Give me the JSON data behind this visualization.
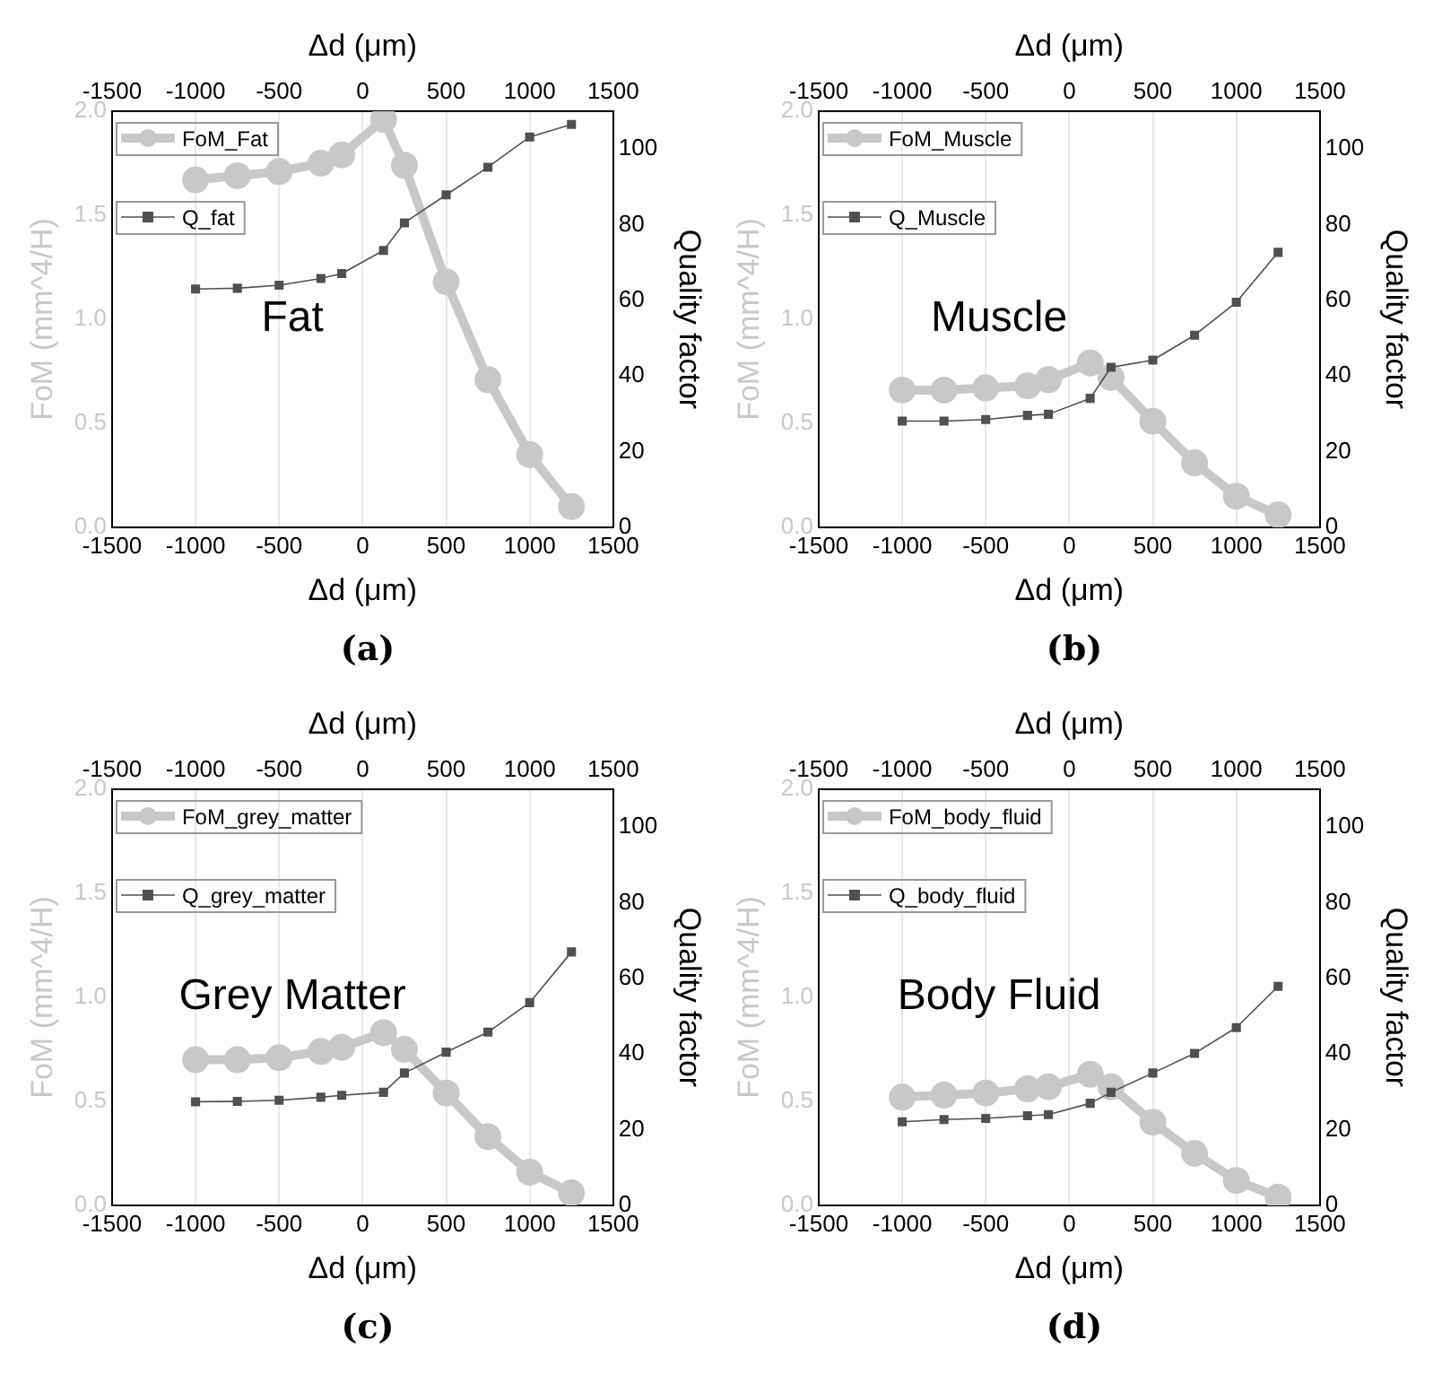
{
  "chart_data": [
    {
      "type": "line",
      "xlabel": "Δd (μm)",
      "x2label": "Δd (μm)",
      "ylabel": "FoM (mm^4/H)",
      "y2label": "Quality factor",
      "x": [
        -1000,
        -750,
        -500,
        -250,
        -125,
        125,
        250,
        500,
        750,
        1000,
        1250
      ],
      "xlim": [
        -1500,
        1500
      ],
      "xticks": [
        -1500,
        -1000,
        -500,
        0,
        500,
        1000,
        1500
      ],
      "x2lim": [
        -1500,
        1500
      ],
      "x2ticks": [
        -1500,
        -1000,
        -500,
        0,
        500,
        1000,
        1500
      ],
      "ylim": [
        0,
        2
      ],
      "yticks": [
        {
          "value": 0,
          "label": "0.0"
        },
        {
          "value": 0.5,
          "label": "0.5"
        },
        {
          "value": 1,
          "label": "1.0"
        },
        {
          "value": 1.5,
          "label": "1.5"
        },
        {
          "value": 2,
          "label": "2.0"
        }
      ],
      "y2lim": [
        0,
        110
      ],
      "y2ticks": [
        0,
        20,
        40,
        60,
        80,
        100
      ],
      "grid": "x",
      "legend": "top left",
      "annotations": [
        "Fat",
        "(a)"
      ],
      "series": [
        {
          "name": "FoM_Fat",
          "color": "#c8c8c8",
          "marker": "circle",
          "values": [
            1.67,
            1.69,
            1.71,
            1.75,
            1.79,
            1.96,
            1.74,
            1.18,
            0.71,
            0.35,
            0.1
          ]
        },
        {
          "name": "Q_fat",
          "color": "#505050",
          "marker": "square",
          "axis": "y2",
          "values": [
            63.0,
            63.2,
            64.0,
            65.8,
            67.1,
            73.2,
            80.5,
            87.9,
            95.2,
            103.2,
            106.5
          ]
        }
      ]
    },
    {
      "type": "line",
      "xlabel": "Δd (μm)",
      "x2label": "Δd (μm)",
      "ylabel": "FoM (mm^4/H)",
      "y2label": "Quality factor",
      "x": [
        -1000,
        -750,
        -500,
        -250,
        -125,
        125,
        250,
        500,
        750,
        1000,
        1250
      ],
      "xlim": [
        -1500,
        1500
      ],
      "xticks": [
        -1500,
        -1000,
        -500,
        0,
        500,
        1000,
        1500
      ],
      "x2lim": [
        -1500,
        1500
      ],
      "x2ticks": [
        -1500,
        -1000,
        -500,
        0,
        500,
        1000,
        1500
      ],
      "ylim": [
        0,
        2
      ],
      "yticks": [
        {
          "value": 0,
          "label": "0.0"
        },
        {
          "value": 0.5,
          "label": "0.5"
        },
        {
          "value": 1,
          "label": "1.0"
        },
        {
          "value": 1.5,
          "label": "1.5"
        },
        {
          "value": 2,
          "label": "2.0"
        }
      ],
      "y2lim": [
        0,
        110
      ],
      "y2ticks": [
        0,
        20,
        40,
        60,
        80,
        100
      ],
      "grid": "x",
      "legend": "top left",
      "annotations": [
        "Muscle",
        "(b)"
      ],
      "series": [
        {
          "name": "FoM_Muscle",
          "color": "#c8c8c8",
          "marker": "circle",
          "values": [
            0.66,
            0.66,
            0.67,
            0.68,
            0.71,
            0.79,
            0.72,
            0.51,
            0.31,
            0.15,
            0.06
          ]
        },
        {
          "name": "Q_Muscle",
          "color": "#505050",
          "marker": "square",
          "axis": "y2",
          "values": [
            28.1,
            28.1,
            28.5,
            29.6,
            29.9,
            34.1,
            42.3,
            44.2,
            50.8,
            59.5,
            72.7
          ]
        }
      ]
    },
    {
      "type": "line",
      "xlabel": "Δd (μm)",
      "x2label": "Δd (μm)",
      "ylabel": "FoM (mm^4/H)",
      "y2label": "Quality factor",
      "x": [
        -1000,
        -750,
        -500,
        -250,
        -125,
        125,
        250,
        500,
        750,
        1000,
        1250
      ],
      "xlim": [
        -1500,
        1500
      ],
      "xticks": [
        -1500,
        -1000,
        -500,
        0,
        500,
        1000,
        1500
      ],
      "x2lim": [
        -1500,
        1500
      ],
      "x2ticks": [
        -1500,
        -1000,
        -500,
        0,
        500,
        1000,
        1500
      ],
      "ylim": [
        0,
        2
      ],
      "yticks": [
        {
          "value": 0,
          "label": "0.0"
        },
        {
          "value": 0.5,
          "label": "0.5"
        },
        {
          "value": 1,
          "label": "1.0"
        },
        {
          "value": 1.5,
          "label": "1.5"
        },
        {
          "value": 2,
          "label": "2.0"
        }
      ],
      "y2lim": [
        0,
        110
      ],
      "y2ticks": [
        0,
        20,
        40,
        60,
        80,
        100
      ],
      "grid": "x",
      "legend": "top left",
      "annotations": [
        "Grey Matter",
        "(c)"
      ],
      "series": [
        {
          "name": "FoM_grey_matter",
          "color": "#c8c8c8",
          "marker": "circle",
          "values": [
            0.7,
            0.7,
            0.71,
            0.74,
            0.76,
            0.83,
            0.75,
            0.54,
            0.33,
            0.16,
            0.06
          ]
        },
        {
          "name": "Q_grey_matter",
          "color": "#505050",
          "marker": "square",
          "axis": "y2",
          "values": [
            27.4,
            27.5,
            27.8,
            28.6,
            29.1,
            29.9,
            35.0,
            40.5,
            45.8,
            53.6,
            67.0
          ]
        }
      ]
    },
    {
      "type": "line",
      "xlabel": "Δd (μm)",
      "x2label": "Δd (μm)",
      "ylabel": "FoM (mm^4/H)",
      "y2label": "Quality factor",
      "x": [
        -1000,
        -750,
        -500,
        -250,
        -125,
        125,
        250,
        500,
        750,
        1000,
        1250
      ],
      "xlim": [
        -1500,
        1500
      ],
      "xticks": [
        -1500,
        -1000,
        -500,
        0,
        500,
        1000,
        1500
      ],
      "x2lim": [
        -1500,
        1500
      ],
      "x2ticks": [
        -1500,
        -1000,
        -500,
        0,
        500,
        1000,
        1500
      ],
      "ylim": [
        0,
        2
      ],
      "yticks": [
        {
          "value": 0,
          "label": "0.0"
        },
        {
          "value": 0.5,
          "label": "0.5"
        },
        {
          "value": 1,
          "label": "1.0"
        },
        {
          "value": 1.5,
          "label": "1.5"
        },
        {
          "value": 2,
          "label": "2.0"
        }
      ],
      "y2lim": [
        0,
        110
      ],
      "y2ticks": [
        0,
        20,
        40,
        60,
        80,
        100
      ],
      "grid": "x",
      "legend": "top left",
      "annotations": [
        "Body Fluid",
        "(d)"
      ],
      "series": [
        {
          "name": "FoM_body_fluid",
          "color": "#c8c8c8",
          "marker": "circle",
          "values": [
            0.52,
            0.53,
            0.54,
            0.56,
            0.57,
            0.63,
            0.57,
            0.4,
            0.25,
            0.12,
            0.04
          ]
        },
        {
          "name": "Q_body_fluid",
          "color": "#505050",
          "marker": "square",
          "axis": "y2",
          "values": [
            22.1,
            22.7,
            23.0,
            23.7,
            24.0,
            27.0,
            29.9,
            35.0,
            40.2,
            47.0,
            57.9
          ]
        }
      ]
    }
  ]
}
